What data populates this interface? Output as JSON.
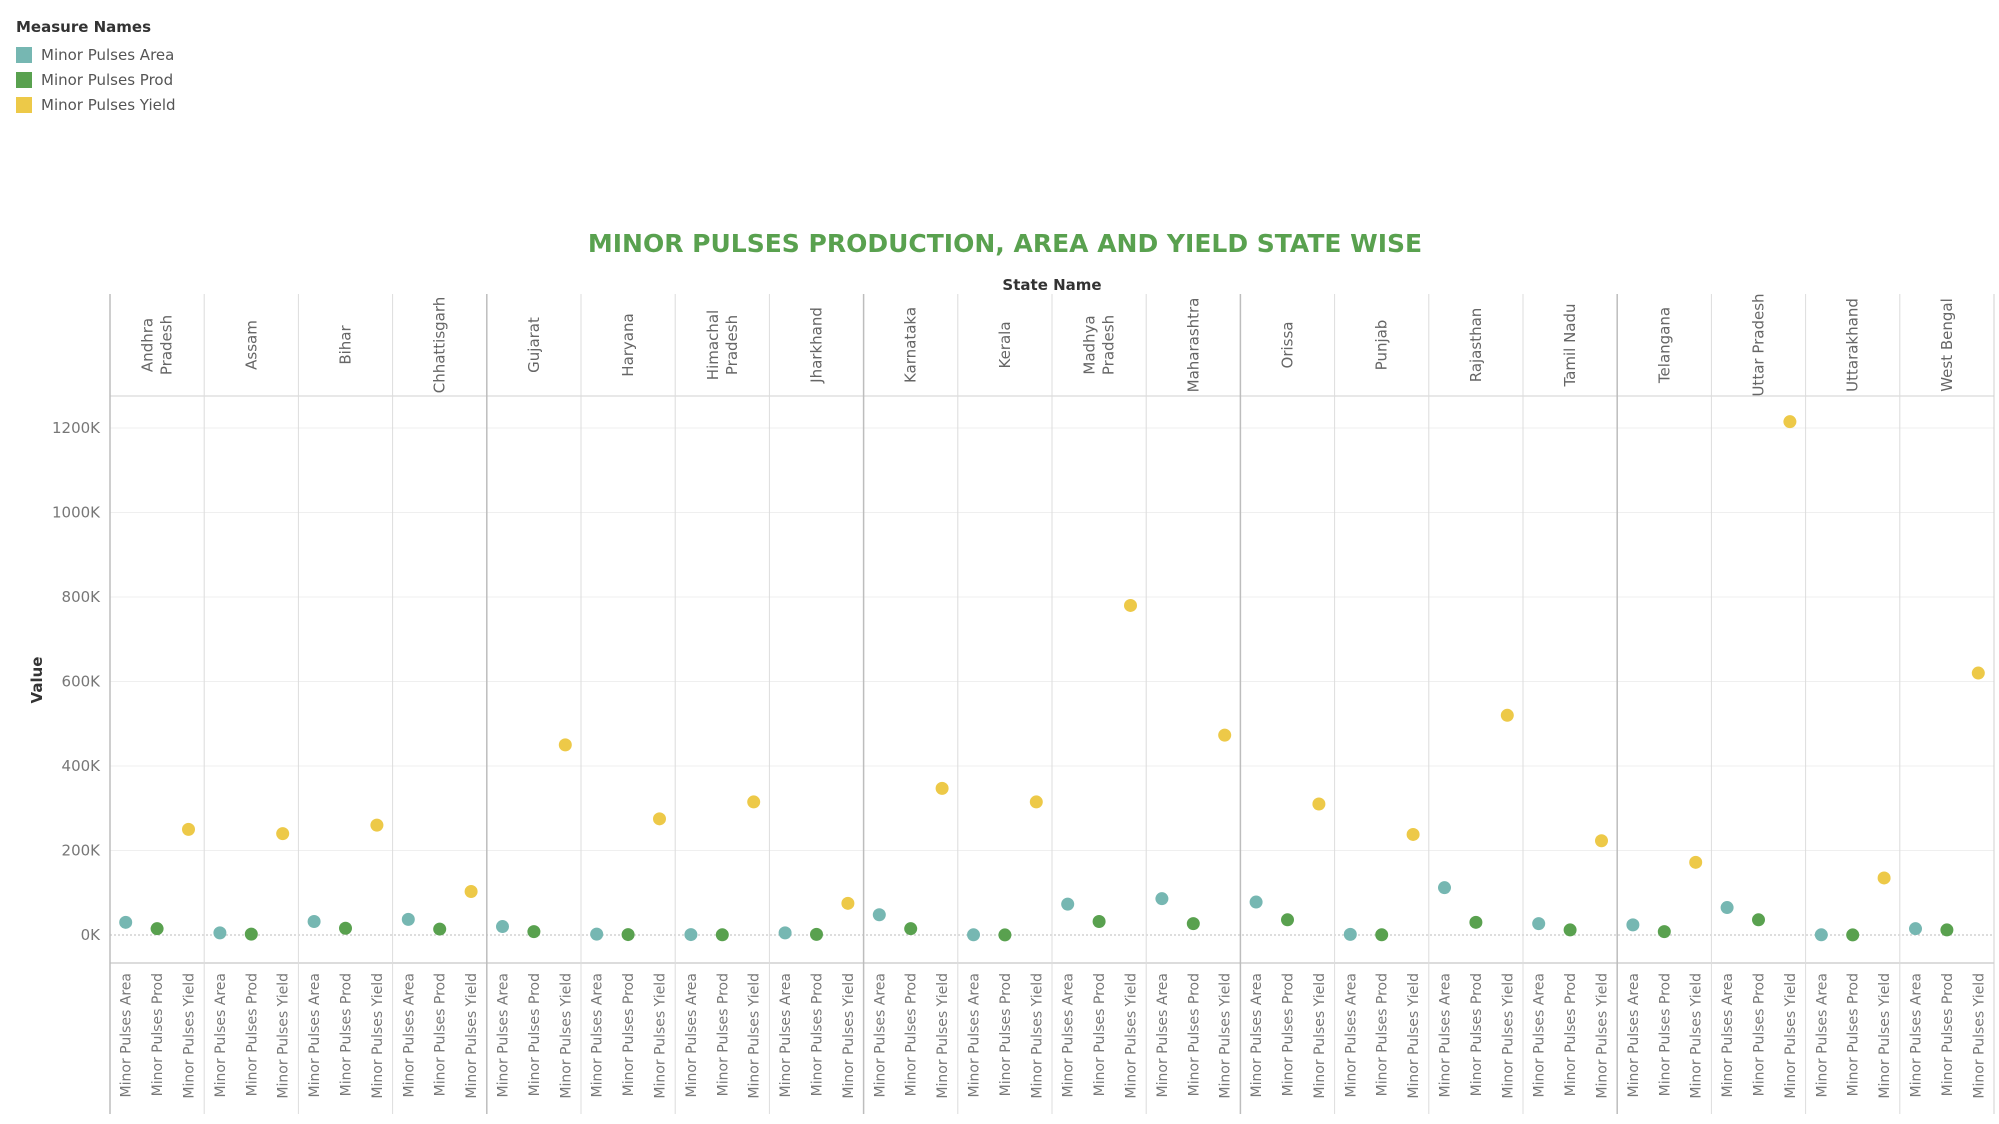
{
  "legend": {
    "title": "Measure Names",
    "items": [
      {
        "label": "Minor Pulses Area",
        "color": "#76b7b2"
      },
      {
        "label": "Minor Pulses Prod",
        "color": "#59a14f"
      },
      {
        "label": "Minor Pulses Yield",
        "color": "#edc948"
      }
    ]
  },
  "chart_data": {
    "type": "scatter",
    "title": "MINOR PULSES PRODUCTION, AREA AND YIELD STATE WISE",
    "title_color": "#59a14f",
    "column_header": "State Name",
    "ylabel": "Value",
    "ylim": [
      -70000,
      1300000
    ],
    "yticks": [
      0,
      200000,
      400000,
      600000,
      800000,
      1000000,
      1200000
    ],
    "ytick_labels": [
      "0K",
      "200K",
      "400K",
      "600K",
      "800K",
      "1000K",
      "1200K"
    ],
    "measures": [
      "Minor Pulses Area",
      "Minor Pulses Prod",
      "Minor Pulses Yield"
    ],
    "measure_colors": [
      "#76b7b2",
      "#59a14f",
      "#edc948"
    ],
    "states": [
      {
        "name": [
          "Andhra",
          "Pradesh"
        ],
        "values": [
          30000,
          15000,
          250000
        ]
      },
      {
        "name": [
          "Assam"
        ],
        "values": [
          5000,
          2000,
          240000
        ]
      },
      {
        "name": [
          "Bihar"
        ],
        "values": [
          32000,
          16000,
          260000
        ]
      },
      {
        "name": [
          "Chhattisgarh"
        ],
        "values": [
          37000,
          14000,
          103000
        ]
      },
      {
        "name": [
          "Gujarat"
        ],
        "values": [
          20000,
          8000,
          450000
        ]
      },
      {
        "name": [
          "Haryana"
        ],
        "values": [
          2000,
          1000,
          275000
        ]
      },
      {
        "name": [
          "Himachal",
          "Pradesh"
        ],
        "values": [
          1000,
          500,
          315000
        ]
      },
      {
        "name": [
          "Jharkhand"
        ],
        "values": [
          5000,
          1500,
          75000
        ]
      },
      {
        "name": [
          "Karnataka"
        ],
        "values": [
          48000,
          15000,
          347000
        ]
      },
      {
        "name": [
          "Kerala"
        ],
        "values": [
          500,
          200,
          315000
        ]
      },
      {
        "name": [
          "Madhya",
          "Pradesh"
        ],
        "values": [
          73000,
          32000,
          780000
        ]
      },
      {
        "name": [
          "Maharashtra"
        ],
        "values": [
          86000,
          27000,
          473000
        ]
      },
      {
        "name": [
          "Orissa"
        ],
        "values": [
          78000,
          36000,
          310000
        ]
      },
      {
        "name": [
          "Punjab"
        ],
        "values": [
          1500,
          500,
          238000
        ]
      },
      {
        "name": [
          "Rajasthan"
        ],
        "values": [
          112000,
          30000,
          520000
        ]
      },
      {
        "name": [
          "Tamil Nadu"
        ],
        "values": [
          27000,
          12000,
          223000
        ]
      },
      {
        "name": [
          "Telangana"
        ],
        "values": [
          24000,
          8000,
          172000
        ]
      },
      {
        "name": [
          "Uttar Pradesh"
        ],
        "values": [
          65000,
          36000,
          1215000
        ]
      },
      {
        "name": [
          "Uttarakhand"
        ],
        "values": [
          500,
          200,
          135000
        ]
      },
      {
        "name": [
          "West Bengal"
        ],
        "values": [
          15000,
          12000,
          620000
        ]
      }
    ],
    "grid": true,
    "legend_position": "top-left"
  }
}
